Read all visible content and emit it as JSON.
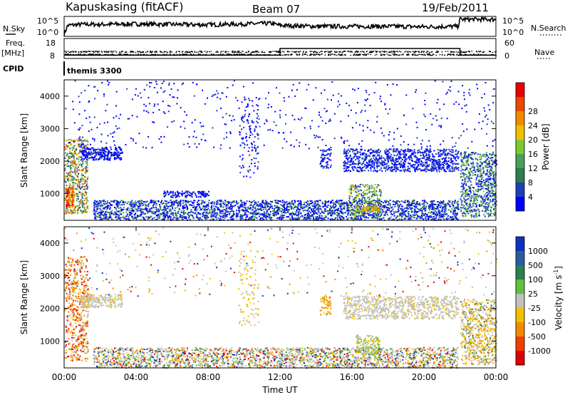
{
  "header": {
    "station": "Kapuskasing (fitACF)",
    "beam": "Beam 07",
    "date": "19/Feb/2011"
  },
  "left_labels": {
    "nsky": "N.Sky",
    "freq": "Freq.",
    "mhz": "[MHz]",
    "cpid": "CPID"
  },
  "right_labels": {
    "nsearch": "N.Search",
    "nave": "Nave"
  },
  "cpid_value": "themis 3300",
  "colors": {
    "power": [
      "#0000ff",
      "#1a3fb8",
      "#2e7d4a",
      "#4aa05a",
      "#7ec832",
      "#f0c000",
      "#f08a00",
      "#e84a00",
      "#e80000"
    ],
    "velocity": [
      "#1030c0",
      "#2a5aa0",
      "#2a8050",
      "#60c040",
      "#c0c0bc",
      "#f0c000",
      "#f08a00",
      "#f04000",
      "#e00000"
    ]
  },
  "chart_data": [
    {
      "type": "line",
      "panel": "noise",
      "xlabel": "",
      "ylabel": "N.Sky",
      "yticks_left": [
        "10^5",
        "10^0"
      ],
      "yticks_right": [
        "10^5",
        "10^0"
      ],
      "x_hours": [
        0,
        0.2,
        1,
        2,
        4,
        6,
        8,
        10,
        11.5,
        12,
        14,
        16,
        18,
        20,
        21.9,
        22,
        23,
        24
      ],
      "sky_level": [
        0.1,
        0.55,
        0.6,
        0.6,
        0.62,
        0.6,
        0.58,
        0.62,
        0.65,
        0.55,
        0.5,
        0.5,
        0.5,
        0.48,
        0.5,
        0.85,
        0.85,
        0.85
      ]
    },
    {
      "type": "line",
      "panel": "freq_nave",
      "ylabel": "Freq. [MHz]",
      "yticks_left": [
        "18",
        "8"
      ],
      "yticks_right": [
        "60",
        "0"
      ],
      "nave_steps": [
        {
          "from": 0,
          "to": 12,
          "value": 10
        },
        {
          "from": 12,
          "to": 22,
          "value": 30
        },
        {
          "from": 22,
          "to": 24,
          "value": 10
        }
      ]
    },
    {
      "type": "heatmap",
      "panel": "power",
      "ylabel": "Slant Range [km]",
      "yticks": [
        "1000",
        "2000",
        "3000",
        "4000"
      ],
      "ylim": [
        180,
        4500
      ],
      "colorbar_label": "Power [dB]",
      "colorbar_ticks": [
        "4",
        "8",
        "12",
        "16",
        "20",
        "24",
        "28"
      ]
    },
    {
      "type": "heatmap",
      "panel": "velocity",
      "ylabel": "Slant Range [km]",
      "yticks": [
        "1000",
        "2000",
        "3000",
        "4000"
      ],
      "ylim": [
        180,
        4500
      ],
      "xlabel": "Time UT",
      "xticks": [
        "00:00",
        "04:00",
        "08:00",
        "12:00",
        "16:00",
        "20:00",
        "00:00"
      ],
      "colorbar_label": "Velocity [m s",
      "colorbar_label_sup": "-1",
      "colorbar_label_end": "]",
      "colorbar_ticks": [
        "1000",
        "500",
        "100",
        "25",
        "-25",
        "-100",
        "-500",
        "-1000"
      ]
    }
  ]
}
